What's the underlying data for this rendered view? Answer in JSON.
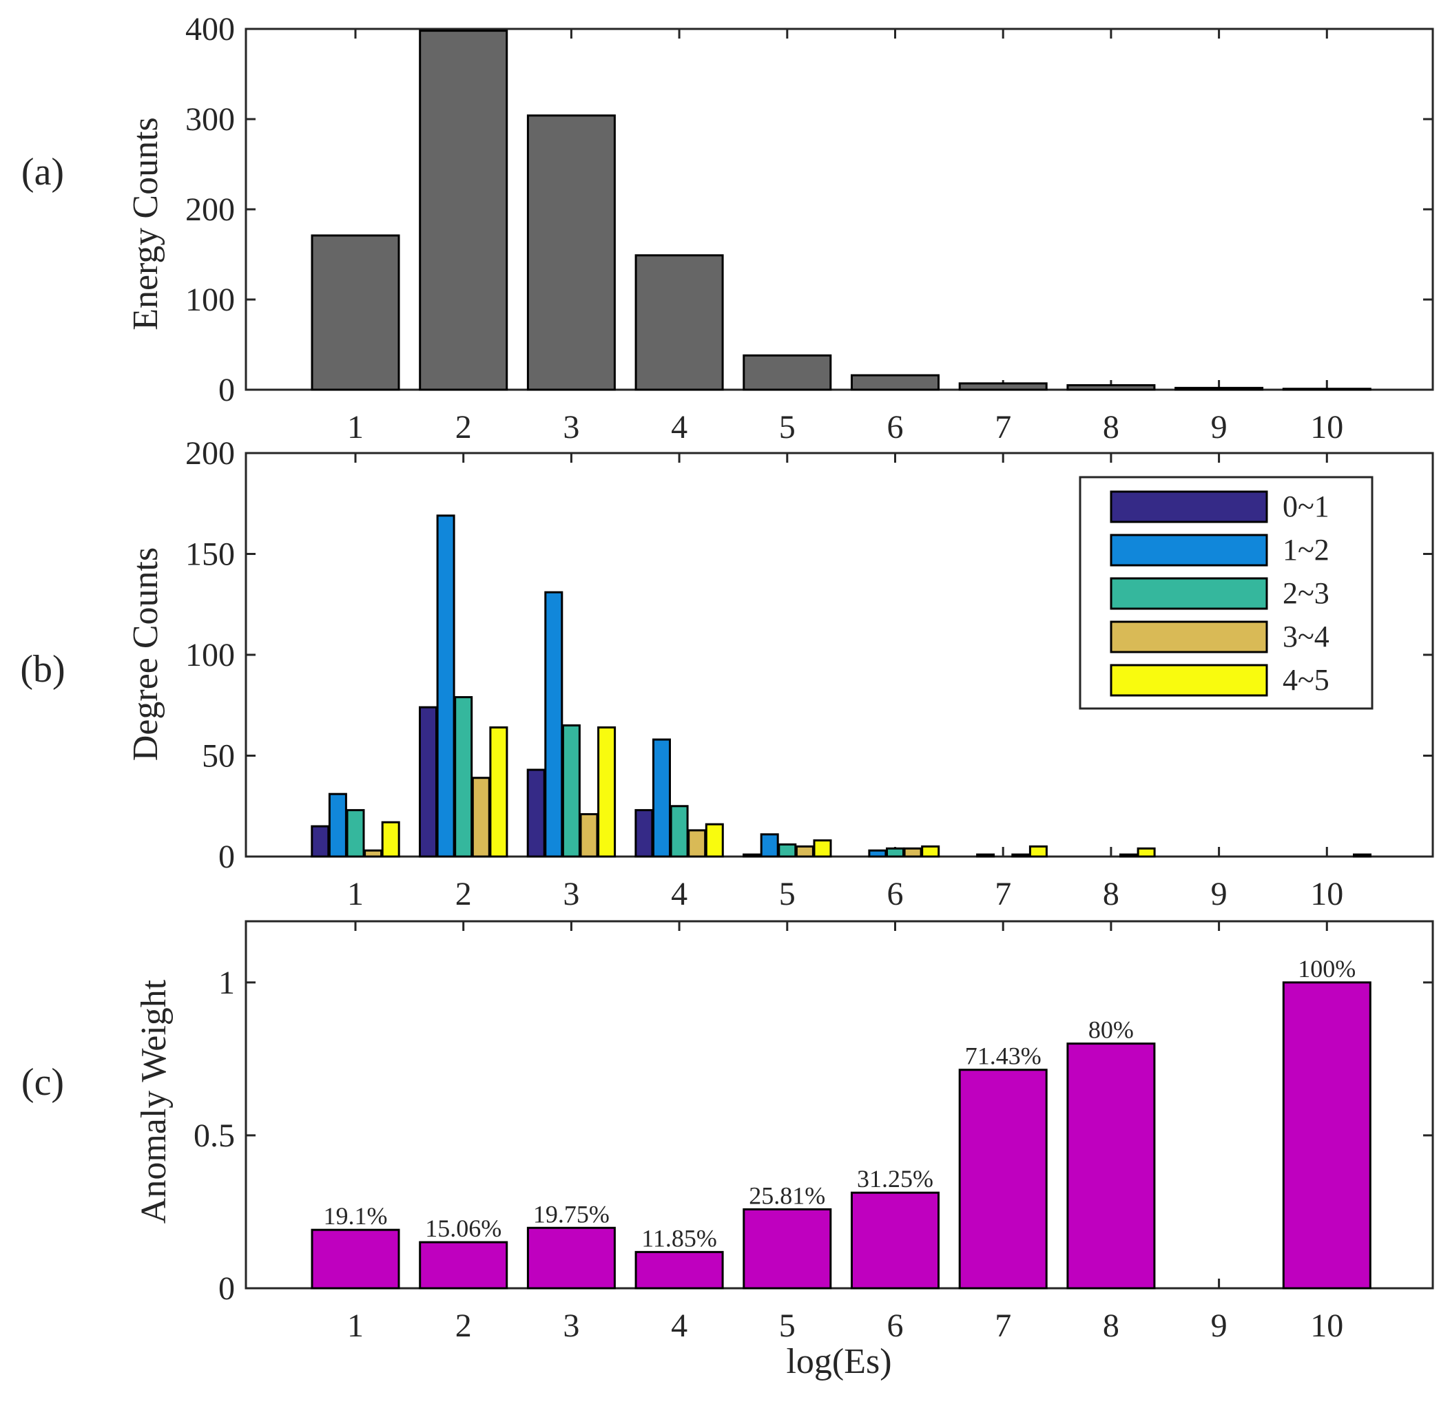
{
  "chart_data": [
    {
      "panel": "(a)",
      "type": "bar",
      "ylabel": "Energy Counts",
      "xlabel": "",
      "categories": [
        "1",
        "2",
        "3",
        "4",
        "5",
        "6",
        "7",
        "8",
        "9",
        "10"
      ],
      "values": [
        171,
        398,
        304,
        149,
        38,
        16,
        7,
        5,
        2,
        1
      ],
      "ylim": [
        0,
        400
      ],
      "yticks": [
        "0",
        "100",
        "200",
        "300",
        "400"
      ],
      "color": "#666666"
    },
    {
      "panel": "(b)",
      "type": "bar",
      "ylabel": "Degree Counts",
      "xlabel": "",
      "categories": [
        "1",
        "2",
        "3",
        "4",
        "5",
        "6",
        "7",
        "8",
        "9",
        "10"
      ],
      "ylim": [
        0,
        200
      ],
      "yticks": [
        "0",
        "50",
        "100",
        "150",
        "200"
      ],
      "legend_position": "top-right",
      "series": [
        {
          "name": "0~1",
          "color": "#352A87",
          "values": [
            15,
            74,
            43,
            23,
            1,
            0,
            0,
            0,
            0,
            0
          ]
        },
        {
          "name": "1~2",
          "color": "#1187DA",
          "values": [
            31,
            169,
            131,
            58,
            11,
            3,
            1,
            0,
            0,
            0
          ]
        },
        {
          "name": "2~3",
          "color": "#35B79D",
          "values": [
            23,
            79,
            65,
            25,
            6,
            4,
            0,
            0,
            0,
            0
          ]
        },
        {
          "name": "3~4",
          "color": "#D9BA56",
          "values": [
            3,
            39,
            21,
            13,
            5,
            4,
            1,
            1,
            0,
            0
          ]
        },
        {
          "name": "4~5",
          "color": "#F9FB0E",
          "values": [
            17,
            64,
            64,
            16,
            8,
            5,
            5,
            4,
            0,
            1
          ]
        }
      ]
    },
    {
      "panel": "(c)",
      "type": "bar",
      "ylabel": "Anomaly Weight",
      "xlabel": "log(Es)",
      "categories": [
        "1",
        "2",
        "3",
        "4",
        "5",
        "6",
        "7",
        "8",
        "9",
        "10"
      ],
      "values": [
        0.191,
        0.1506,
        0.1975,
        0.1185,
        0.2581,
        0.3125,
        0.7143,
        0.8,
        0,
        1.0
      ],
      "data_labels": [
        "19.1%",
        "15.06%",
        "19.75%",
        "11.85%",
        "25.81%",
        "31.25%",
        "71.43%",
        "80%",
        "",
        "100%"
      ],
      "ylim": [
        0,
        1.2
      ],
      "yticks": [
        "0",
        "0.5",
        "1"
      ],
      "color": "#BF00BF"
    }
  ]
}
